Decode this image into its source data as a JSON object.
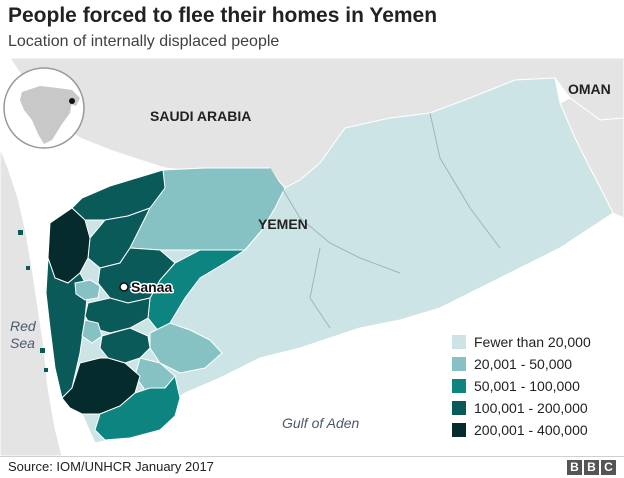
{
  "header": {
    "title": "People forced to flee their homes in Yemen",
    "subtitle": "Location of internally displaced people"
  },
  "map": {
    "countries": {
      "saudi_arabia": "SAUDI ARABIA",
      "oman": "OMAN",
      "yemen": "YEMEN"
    },
    "seas": {
      "red_sea_line1": "Red",
      "red_sea_line2": "Sea",
      "gulf_of_aden": "Gulf of Aden"
    },
    "city": "Sanaa",
    "colors": {
      "sea": "#ffffff",
      "neighbour_land": "#e4e4e4",
      "class_1": "#cce4e5",
      "class_2": "#86c1c3",
      "class_3": "#0e8481",
      "class_4": "#0b5a5a",
      "class_5": "#062b2c"
    }
  },
  "legend": {
    "items": [
      {
        "label": "Fewer than 20,000",
        "color": "#cce4e5"
      },
      {
        "label": "20,001 - 50,000",
        "color": "#86c1c3"
      },
      {
        "label": "50,001 - 100,000",
        "color": "#0e8481"
      },
      {
        "label": "100,001 - 200,000",
        "color": "#0b5a5a"
      },
      {
        "label": "200,001 - 400,000",
        "color": "#062b2c"
      }
    ]
  },
  "footer": {
    "source": "Source: IOM/UNHCR January 2017",
    "logo": [
      "B",
      "B",
      "C"
    ]
  }
}
